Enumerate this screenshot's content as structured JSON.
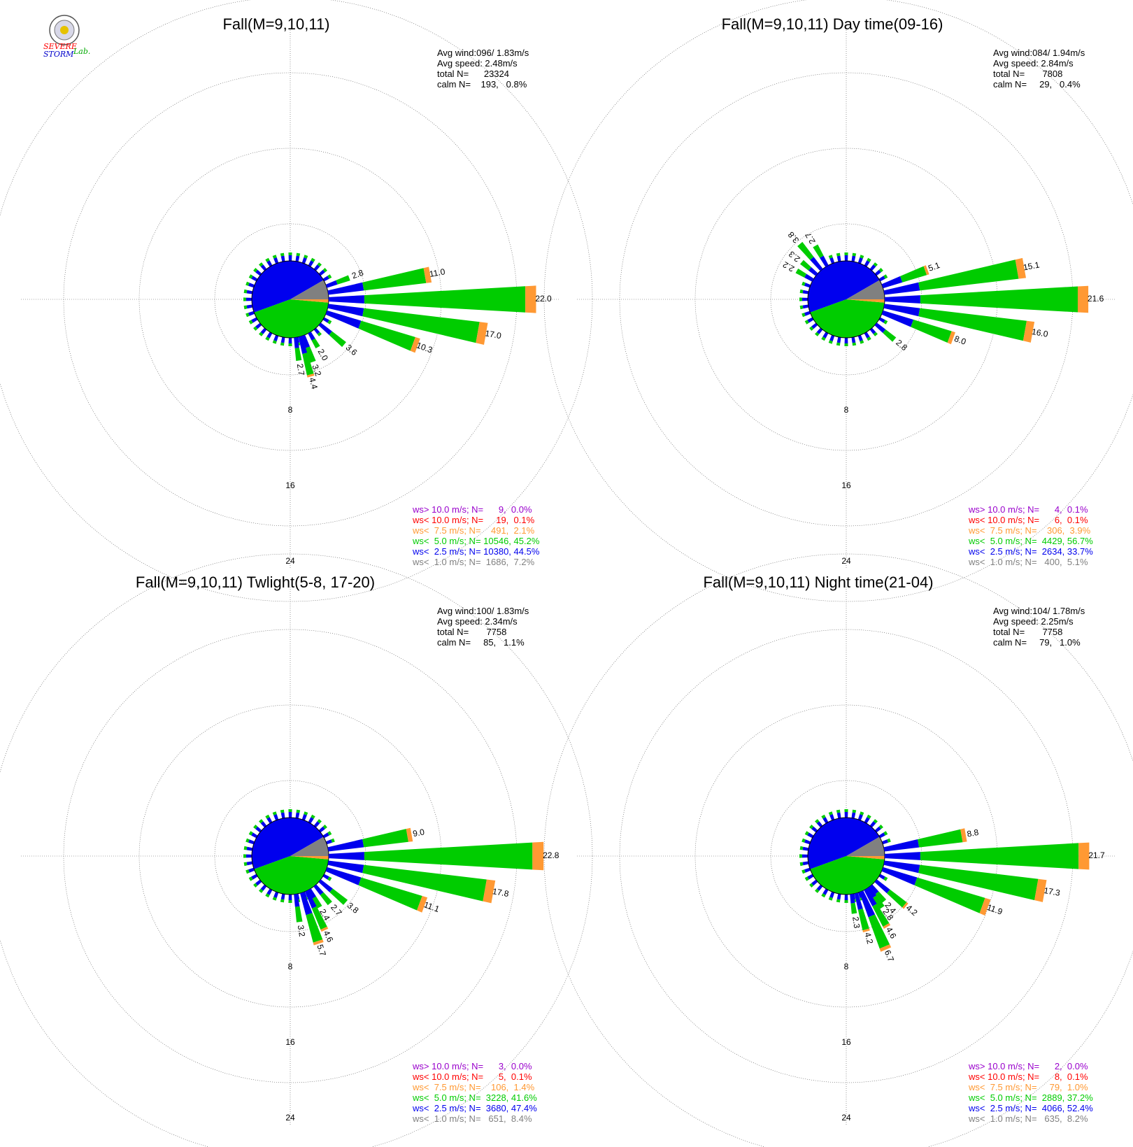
{
  "logo": {
    "text_severe": "SEVERE",
    "text_storm": "STORM",
    "text_lab": "Lab."
  },
  "colors": {
    "gt10": "#9900cc",
    "lt10": "#ff0000",
    "lt75": "#ff9933",
    "lt5": "#00cc00",
    "lt25": "#0000ee",
    "lt1": "#808080"
  },
  "chart_data": [
    {
      "type": "windrose",
      "title": "Fall(M=9,10,11)",
      "rings": [
        "8",
        "16",
        "24"
      ],
      "stats": [
        "Avg wind:096/ 1.83m/s",
        "Avg speed: 2.48m/s",
        "total N=      23324",
        "calm N=    193,   0.8%"
      ],
      "legend": [
        {
          "key": "gt10",
          "text": "ws> 10.0 m/s; N=      9,  0.0%"
        },
        {
          "key": "lt10",
          "text": "ws< 10.0 m/s; N=     19,  0.1%"
        },
        {
          "key": "lt75",
          "text": "ws<  7.5 m/s; N=    491,  2.1%"
        },
        {
          "key": "lt5",
          "text": "ws<  5.0 m/s; N= 10546, 45.2%"
        },
        {
          "key": "lt25",
          "text": "ws<  2.5 m/s; N= 10380, 44.5%"
        },
        {
          "key": "lt1",
          "text": "ws<  1.0 m/s; N=  1686,  7.2%"
        }
      ],
      "bars": [
        {
          "dir": 70,
          "total": 2.8,
          "label": "2.8"
        },
        {
          "dir": 80,
          "total": 11.0,
          "label": "11.0"
        },
        {
          "dir": 90,
          "total": 22.0,
          "label": "22.0"
        },
        {
          "dir": 100,
          "total": 17.0,
          "label": "17.0"
        },
        {
          "dir": 110,
          "total": 10.3,
          "label": "10.3"
        },
        {
          "dir": 130,
          "total": 3.6,
          "label": "3.6"
        },
        {
          "dir": 150,
          "total": 2.0,
          "label": "2.0"
        },
        {
          "dir": 160,
          "total": 3.2,
          "label": "3.2"
        },
        {
          "dir": 165,
          "total": 4.4,
          "label": "4.4"
        },
        {
          "dir": 172,
          "total": 2.7,
          "label": "2.7"
        }
      ]
    },
    {
      "type": "windrose",
      "title": "Fall(M=9,10,11) Day time(09-16)",
      "rings": [
        "8",
        "16",
        "24"
      ],
      "stats": [
        "Avg wind:084/ 1.94m/s",
        "Avg speed: 2.84m/s",
        "total N=       7808",
        "calm N=     29,   0.4%"
      ],
      "legend": [
        {
          "key": "gt10",
          "text": "ws> 10.0 m/s; N=      4,  0.1%"
        },
        {
          "key": "lt10",
          "text": "ws< 10.0 m/s; N=      6,  0.1%"
        },
        {
          "key": "lt75",
          "text": "ws<  7.5 m/s; N=    306,  3.9%"
        },
        {
          "key": "lt5",
          "text": "ws<  5.0 m/s; N=  4429, 56.7%"
        },
        {
          "key": "lt25",
          "text": "ws<  2.5 m/s; N=  2634, 33.7%"
        },
        {
          "key": "lt1",
          "text": "ws<  1.0 m/s; N=   400,  5.1%"
        }
      ],
      "bars": [
        {
          "dir": 70,
          "total": 5.1,
          "label": "5.1"
        },
        {
          "dir": 80,
          "total": 15.1,
          "label": "15.1"
        },
        {
          "dir": 90,
          "total": 21.6,
          "label": "21.6"
        },
        {
          "dir": 100,
          "total": 16.0,
          "label": "16.0"
        },
        {
          "dir": 110,
          "total": 8.0,
          "label": "8.0"
        },
        {
          "dir": 130,
          "total": 2.8,
          "label": "2.8"
        },
        {
          "dir": 300,
          "total": 2.2,
          "label": "2.2"
        },
        {
          "dir": 310,
          "total": 2.3,
          "label": "2.3"
        },
        {
          "dir": 320,
          "total": 3.8,
          "label": "3.8"
        },
        {
          "dir": 330,
          "total": 2.7,
          "label": "2.7"
        }
      ]
    },
    {
      "type": "windrose",
      "title": "Fall(M=9,10,11) Twlight(5-8, 17-20)",
      "rings": [
        "8",
        "16",
        "24"
      ],
      "stats": [
        "Avg wind:100/ 1.83m/s",
        "Avg speed: 2.34m/s",
        "total N=       7758",
        "calm N=     85,   1.1%"
      ],
      "legend": [
        {
          "key": "gt10",
          "text": "ws> 10.0 m/s; N=      3,  0.0%"
        },
        {
          "key": "lt10",
          "text": "ws< 10.0 m/s; N=      5,  0.1%"
        },
        {
          "key": "lt75",
          "text": "ws<  7.5 m/s; N=    106,  1.4%"
        },
        {
          "key": "lt5",
          "text": "ws<  5.0 m/s; N=  3228, 41.6%"
        },
        {
          "key": "lt25",
          "text": "ws<  2.5 m/s; N=  3680, 47.4%"
        },
        {
          "key": "lt1",
          "text": "ws<  1.0 m/s; N=   651,  8.4%"
        }
      ],
      "bars": [
        {
          "dir": 80,
          "total": 9.0,
          "label": "9.0"
        },
        {
          "dir": 90,
          "total": 22.8,
          "label": "22.8"
        },
        {
          "dir": 100,
          "total": 17.8,
          "label": "17.8"
        },
        {
          "dir": 110,
          "total": 11.1,
          "label": "11.1"
        },
        {
          "dir": 130,
          "total": 3.8,
          "label": "3.8"
        },
        {
          "dir": 140,
          "total": 2.7,
          "label": "2.7"
        },
        {
          "dir": 150,
          "total": 2.4,
          "label": "2.4"
        },
        {
          "dir": 155,
          "total": 4.6,
          "label": "4.6"
        },
        {
          "dir": 162,
          "total": 5.7,
          "label": "5.7"
        },
        {
          "dir": 172,
          "total": 3.2,
          "label": "3.2"
        }
      ]
    },
    {
      "type": "windrose",
      "title": "Fall(M=9,10,11) Night time(21-04)",
      "rings": [
        "8",
        "16",
        "24"
      ],
      "stats": [
        "Avg wind:104/ 1.78m/s",
        "Avg speed: 2.25m/s",
        "total N=       7758",
        "calm N=     79,   1.0%"
      ],
      "legend": [
        {
          "key": "gt10",
          "text": "ws> 10.0 m/s; N=      2,  0.0%"
        },
        {
          "key": "lt10",
          "text": "ws< 10.0 m/s; N=      8,  0.1%"
        },
        {
          "key": "lt75",
          "text": "ws<  7.5 m/s; N=     79,  1.0%"
        },
        {
          "key": "lt5",
          "text": "ws<  5.0 m/s; N=  2889, 37.2%"
        },
        {
          "key": "lt25",
          "text": "ws<  2.5 m/s; N=  4066, 52.4%"
        },
        {
          "key": "lt1",
          "text": "ws<  1.0 m/s; N=   635,  8.2%"
        }
      ],
      "bars": [
        {
          "dir": 80,
          "total": 8.8,
          "label": "8.8"
        },
        {
          "dir": 90,
          "total": 21.7,
          "label": "21.7"
        },
        {
          "dir": 100,
          "total": 17.3,
          "label": "17.3"
        },
        {
          "dir": 110,
          "total": 11.9,
          "label": "11.9"
        },
        {
          "dir": 130,
          "total": 4.2,
          "label": "4.2"
        },
        {
          "dir": 140,
          "total": 2.4,
          "label": "2.4"
        },
        {
          "dir": 145,
          "total": 2.8,
          "label": "2.8"
        },
        {
          "dir": 150,
          "total": 4.6,
          "label": "4.6"
        },
        {
          "dir": 157,
          "total": 6.7,
          "label": "6.7"
        },
        {
          "dir": 165,
          "total": 4.2,
          "label": "4.2"
        },
        {
          "dir": 172,
          "total": 2.3,
          "label": "2.3"
        }
      ]
    }
  ]
}
